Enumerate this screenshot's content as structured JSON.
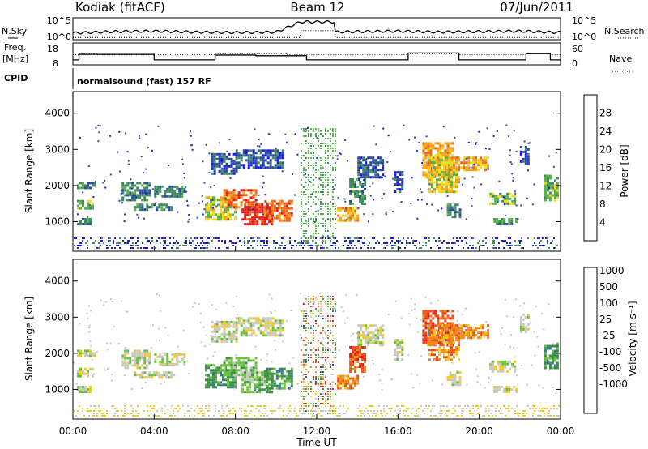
{
  "header": {
    "station": "Kodiak (fitACF)",
    "beam": "Beam 12",
    "date": "07/Jun/2011"
  },
  "side_labels": {
    "nsky": "N.Sky",
    "freq": "Freq.",
    "freq_unit": "[MHz]",
    "cpid": "CPID",
    "nsearch": "N.Search",
    "nave": "Nave"
  },
  "cpid_text": "normalsound (fast) 157 RF",
  "colors": {
    "noise_line": "#000000",
    "power_scale": [
      "#1b1be6",
      "#2b4c9c",
      "#3f8a62",
      "#57b545",
      "#f2d81e",
      "#f2a21b",
      "#f06517",
      "#e61a1a"
    ],
    "velocity_scale": [
      "#2446b8",
      "#2f7a8a",
      "#3d9146",
      "#6ac23c",
      "#c9c9c2",
      "#f2c91b",
      "#f08a1a",
      "#eb5318",
      "#e61a1a"
    ]
  },
  "chart_data": [
    {
      "type": "line",
      "title": "N.Sky / N.Search",
      "ylabels_left": [
        "10^5",
        "10^0"
      ],
      "ylabels_right": [
        "10^5",
        "10^0"
      ],
      "x": [
        0,
        2,
        4,
        6,
        8,
        10,
        11.2,
        12.9,
        14,
        16,
        18,
        20,
        22,
        24
      ],
      "series": [
        {
          "name": "N.Sky",
          "values": [
            1.2,
            1.5,
            1.6,
            1.4,
            1.3,
            1.4,
            3.5,
            1.4,
            1.5,
            1.6,
            1.4,
            1.5,
            1.6,
            1.3
          ]
        },
        {
          "name": "N.Search",
          "values": [
            0.3,
            0.3,
            0.3,
            0.3,
            0.3,
            0.3,
            0.3,
            0.3,
            0.3,
            0.3,
            0.3,
            0.3,
            0.3,
            0.3
          ]
        }
      ]
    },
    {
      "type": "line",
      "title": "Freq. / Nave",
      "yticks_left": [
        "18",
        "8"
      ],
      "yticks_right": [
        "60",
        "0"
      ],
      "x": [
        0,
        0.3,
        1.2,
        2.5,
        4,
        6.2,
        7,
        9,
        10.5,
        11.5,
        12,
        13.5,
        14,
        16.5,
        18,
        19,
        20,
        21.5,
        22.3,
        23.5,
        24
      ],
      "series": [
        {
          "name": "Freq.",
          "values": [
            11,
            15,
            15,
            15,
            11,
            11,
            14.5,
            14,
            14,
            11,
            11,
            11,
            11,
            16,
            16,
            11,
            11,
            11,
            15.5,
            11,
            10
          ]
        },
        {
          "name": "Nave",
          "values": [
            40,
            45,
            40,
            40,
            40,
            40,
            45,
            45,
            40,
            40,
            40,
            40,
            40,
            45,
            45,
            40,
            40,
            40,
            45,
            40,
            40
          ]
        }
      ]
    },
    {
      "type": "heatmap",
      "title": "Power",
      "ylabel": "Slant Range [km]",
      "colorbar_label": "Power [dB]",
      "colorbar_ticks": [
        "4",
        "8",
        "12",
        "16",
        "20",
        "24",
        "28"
      ],
      "ylim": [
        180,
        4600
      ],
      "yticks": [
        1000,
        2000,
        3000,
        4000
      ],
      "xlim": [
        0,
        24
      ]
    },
    {
      "type": "heatmap",
      "title": "Velocity",
      "ylabel": "Slant Range [km]",
      "colorbar_label": "Velocity [m s⁻¹]",
      "colorbar_ticks": [
        "1000",
        "500",
        "100",
        "25",
        "-25",
        "-100",
        "-500",
        "-1000"
      ],
      "ylim": [
        180,
        4600
      ],
      "yticks": [
        1000,
        2000,
        3000,
        4000
      ],
      "xlim": [
        0,
        24
      ]
    }
  ],
  "x_axis": {
    "label": "Time UT",
    "ticks": [
      "00:00",
      "04:00",
      "08:00",
      "12:00",
      "16:00",
      "20:00",
      "00:00"
    ]
  }
}
